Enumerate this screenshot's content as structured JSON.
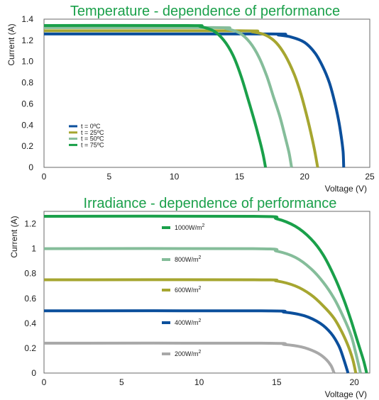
{
  "chart_data": [
    {
      "type": "line",
      "title": "Temperature - dependence of performance",
      "xlabel": "Voltage (V)",
      "ylabel": "Current (A)",
      "xlim": [
        0,
        25
      ],
      "ylim": [
        0,
        1.4
      ],
      "xticks": [
        "0",
        "5",
        "10",
        "15",
        "20",
        "25"
      ],
      "yticks": [
        "0",
        "0.2",
        "0.4",
        "0.6",
        "0.8",
        "1.0",
        "1.2",
        "1.4"
      ],
      "grid": false,
      "legend_position": "lower-left",
      "series": [
        {
          "name": "t = 0ºC",
          "color": "#0b4f9c",
          "points": [
            [
              0,
              1.26
            ],
            [
              17,
              1.26
            ],
            [
              18,
              1.25
            ],
            [
              19,
              1.23
            ],
            [
              20,
              1.18
            ],
            [
              20.8,
              1.08
            ],
            [
              21.4,
              0.95
            ],
            [
              21.9,
              0.8
            ],
            [
              22.3,
              0.62
            ],
            [
              22.6,
              0.45
            ],
            [
              22.8,
              0.3
            ],
            [
              22.95,
              0.15
            ],
            [
              23,
              0
            ]
          ]
        },
        {
          "name": "t = 25ºC",
          "color": "#a6a630",
          "points": [
            [
              0,
              1.29
            ],
            [
              15,
              1.29
            ],
            [
              16,
              1.28
            ],
            [
              17,
              1.25
            ],
            [
              17.8,
              1.18
            ],
            [
              18.5,
              1.06
            ],
            [
              19.2,
              0.88
            ],
            [
              19.7,
              0.7
            ],
            [
              20.1,
              0.52
            ],
            [
              20.45,
              0.34
            ],
            [
              20.75,
              0.17
            ],
            [
              21,
              0
            ]
          ]
        },
        {
          "name": "t = 50ºC",
          "color": "#85bd9a",
          "points": [
            [
              0,
              1.32
            ],
            [
              13,
              1.32
            ],
            [
              14,
              1.31
            ],
            [
              15,
              1.27
            ],
            [
              15.8,
              1.18
            ],
            [
              16.5,
              1.04
            ],
            [
              17.1,
              0.86
            ],
            [
              17.6,
              0.67
            ],
            [
              18.1,
              0.48
            ],
            [
              18.5,
              0.29
            ],
            [
              18.8,
              0.14
            ],
            [
              19,
              0
            ]
          ]
        },
        {
          "name": "t = 75ºC",
          "color": "#1aa04a",
          "points": [
            [
              0,
              1.34
            ],
            [
              11,
              1.34
            ],
            [
              12,
              1.33
            ],
            [
              13,
              1.29
            ],
            [
              13.8,
              1.2
            ],
            [
              14.5,
              1.06
            ],
            [
              15.1,
              0.87
            ],
            [
              15.6,
              0.67
            ],
            [
              16.1,
              0.46
            ],
            [
              16.5,
              0.28
            ],
            [
              16.8,
              0.13
            ],
            [
              17,
              0
            ]
          ]
        }
      ]
    },
    {
      "type": "line",
      "title": "Irradiance - dependence of performance",
      "xlabel": "Voltage (V)",
      "ylabel": "Current (A)",
      "xlim": [
        0,
        21
      ],
      "ylim": [
        0,
        1.3
      ],
      "xticks": [
        "0",
        "5",
        "10",
        "15",
        "20"
      ],
      "yticks": [
        "0",
        "0.2",
        "0.4",
        "0.6",
        "0.8",
        "1",
        "1.2"
      ],
      "grid": false,
      "legend_position": "inline",
      "series": [
        {
          "name": "1000W/m",
          "exp": "2",
          "color": "#1aa04a",
          "points": [
            [
              0,
              1.26
            ],
            [
              13.5,
              1.26
            ],
            [
              15,
              1.24
            ],
            [
              16.2,
              1.18
            ],
            [
              17.2,
              1.08
            ],
            [
              18,
              0.95
            ],
            [
              18.7,
              0.78
            ],
            [
              19.3,
              0.6
            ],
            [
              19.8,
              0.42
            ],
            [
              20.2,
              0.26
            ],
            [
              20.6,
              0.1
            ],
            [
              20.8,
              0
            ]
          ]
        },
        {
          "name": "800W/m",
          "exp": "2",
          "color": "#85bd9a",
          "points": [
            [
              0,
              1.0
            ],
            [
              13.5,
              1.0
            ],
            [
              15,
              0.98
            ],
            [
              16.2,
              0.93
            ],
            [
              17.2,
              0.84
            ],
            [
              18,
              0.73
            ],
            [
              18.7,
              0.6
            ],
            [
              19.3,
              0.45
            ],
            [
              19.8,
              0.3
            ],
            [
              20.1,
              0.16
            ],
            [
              20.4,
              0
            ]
          ]
        },
        {
          "name": "600W/m",
          "exp": "2",
          "color": "#a6a630",
          "points": [
            [
              0,
              0.75
            ],
            [
              13.5,
              0.75
            ],
            [
              15,
              0.74
            ],
            [
              16.2,
              0.7
            ],
            [
              17.2,
              0.63
            ],
            [
              18,
              0.54
            ],
            [
              18.7,
              0.44
            ],
            [
              19.2,
              0.33
            ],
            [
              19.6,
              0.22
            ],
            [
              19.9,
              0.11
            ],
            [
              20.1,
              0
            ]
          ]
        },
        {
          "name": "400W/m",
          "exp": "2",
          "color": "#0b4f9c",
          "points": [
            [
              0,
              0.5
            ],
            [
              14,
              0.5
            ],
            [
              15.5,
              0.49
            ],
            [
              16.8,
              0.46
            ],
            [
              17.8,
              0.4
            ],
            [
              18.5,
              0.32
            ],
            [
              19,
              0.22
            ],
            [
              19.3,
              0.12
            ],
            [
              19.6,
              0
            ]
          ]
        },
        {
          "name": "200W/m",
          "exp": "2",
          "color": "#a8a8a8",
          "points": [
            [
              0,
              0.24
            ],
            [
              14,
              0.24
            ],
            [
              15.5,
              0.23
            ],
            [
              16.6,
              0.21
            ],
            [
              17.5,
              0.17
            ],
            [
              18.1,
              0.12
            ],
            [
              18.5,
              0.06
            ],
            [
              18.7,
              0
            ]
          ]
        }
      ]
    }
  ]
}
